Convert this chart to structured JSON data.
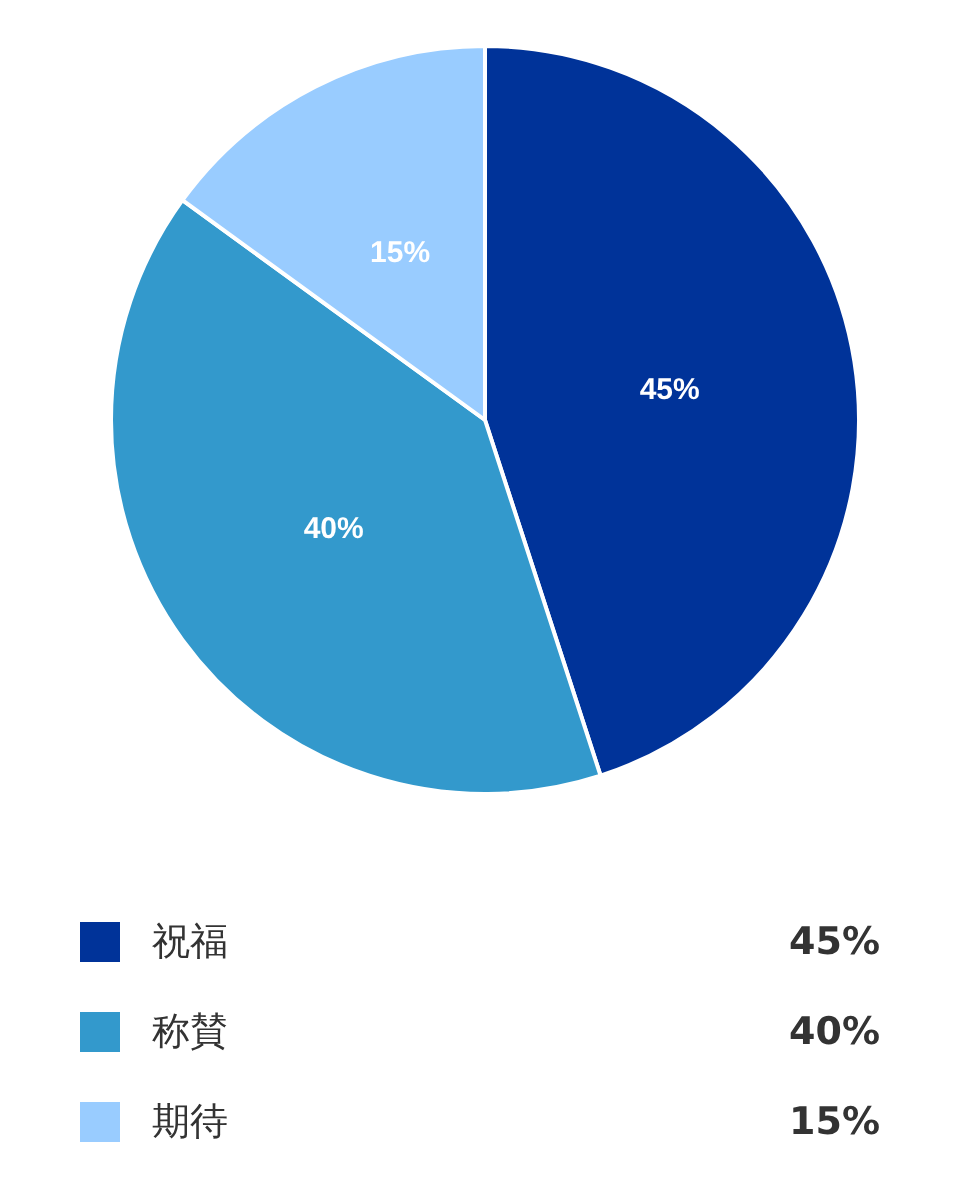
{
  "chart_data": {
    "type": "pie",
    "categories": [
      "祝福",
      "称賛",
      "期待"
    ],
    "values": [
      45,
      40,
      15
    ],
    "colors": [
      "#003399",
      "#3399cc",
      "#99ccff"
    ],
    "value_labels": [
      "45%",
      "40%",
      "15%"
    ],
    "legend": "bottom"
  }
}
